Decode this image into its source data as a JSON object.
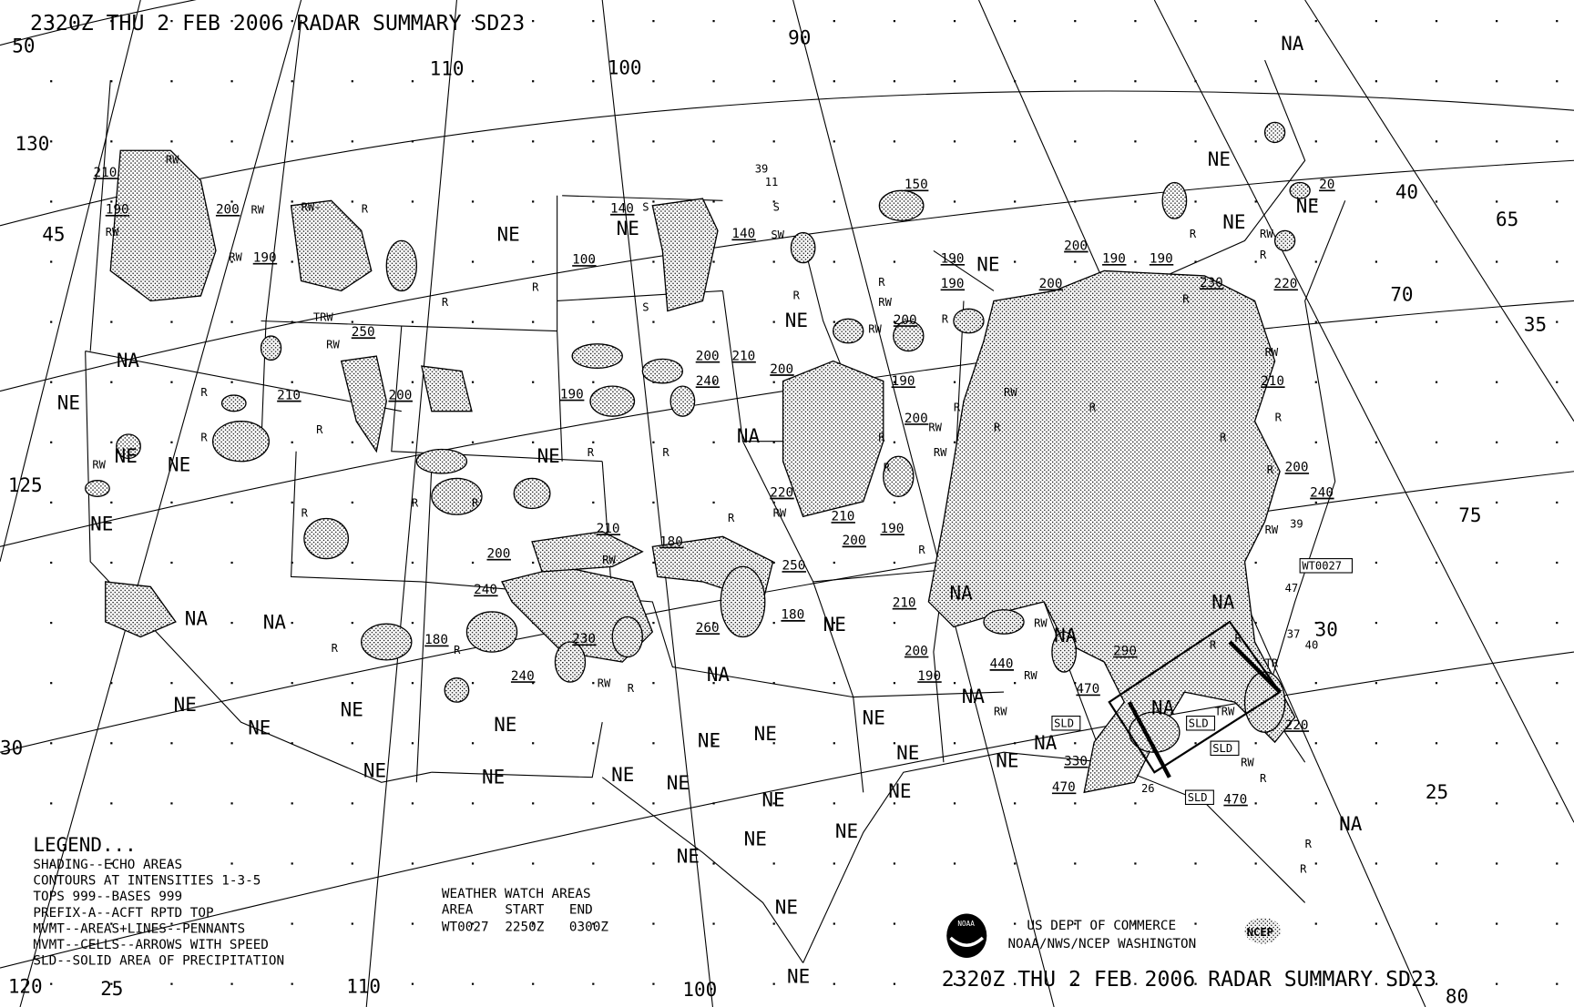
{
  "title_top": "2320Z THU  2 FEB 2006 RADAR SUMMARY SD23",
  "title_bottom": "2320Z THU  2 FEB 2006 RADAR SUMMARY SD23",
  "legend": {
    "heading": "LEGEND...",
    "lines": [
      "SHADING--ECHO AREAS",
      "CONTOURS AT INTENSITIES 1-3-5",
      "TOPS 999--BASES 999",
      "PREFIX-A--ACFT RPTD TOP",
      "MVMT--AREAS+LINES--PENNANTS",
      "MVMT--CELLS--ARROWS WITH SPEED",
      "SLD--SOLID AREA OF PRECIPITATION"
    ]
  },
  "watch": {
    "heading": "WEATHER WATCH AREAS",
    "columns": [
      "AREA",
      "START",
      "END"
    ],
    "rows": [
      [
        "WT0027",
        "2250Z",
        "0300Z"
      ]
    ]
  },
  "credits": {
    "line1": "US DEPT OF COMMERCE",
    "line2": "NOAA/NWS/NCEP WASHINGTON",
    "noaa_logo": "NOAA",
    "ncep_logo": "NCEP"
  },
  "grid_labels": [
    "50",
    "45",
    "130",
    "125",
    "110",
    "100",
    "90",
    "120",
    "25",
    "110",
    "100",
    "40",
    "35",
    "30",
    "25",
    "65",
    "70",
    "75",
    "30",
    "80"
  ],
  "status_labels": [
    "NA",
    "NE",
    "NE",
    "NE",
    "NE",
    "NE",
    "NE",
    "NE",
    "NA",
    "NE",
    "NE",
    "NE",
    "NE",
    "NA",
    "NE",
    "NA",
    "NA",
    "NA",
    "NA",
    "NE",
    "NA",
    "NA",
    "NA",
    "NA",
    "NA",
    "NE",
    "NE",
    "NE",
    "NE",
    "NE",
    "NE",
    "NE",
    "NE",
    "NE",
    "NE",
    "NE",
    "NE",
    "NE",
    "NE",
    "NE",
    "NE",
    "NE",
    "NE",
    "NE",
    "NE",
    "NA"
  ],
  "tops": [
    "210",
    "190",
    "200",
    "190",
    "250",
    "210",
    "200",
    "140",
    "140",
    "100",
    "150",
    "20",
    "200",
    "190",
    "190",
    "190",
    "190",
    "200",
    "230",
    "220",
    "200",
    "200",
    "210",
    "200",
    "190",
    "240",
    "190",
    "200",
    "210",
    "200",
    "240",
    "220",
    "210",
    "200",
    "190",
    "210",
    "180",
    "200",
    "250",
    "240",
    "180",
    "260",
    "230",
    "180",
    "240",
    "210",
    "200",
    "190",
    "440",
    "290",
    "470",
    "330",
    "470",
    "470",
    "220"
  ],
  "speeds": [
    "39",
    "11",
    "26",
    "39",
    "37",
    "40",
    "47"
  ],
  "precip_types": [
    "RW",
    "RW",
    "RW",
    "RW",
    "R",
    "RW-",
    "R",
    "R",
    "TRW",
    "RW",
    "R",
    "R",
    "R",
    "RW",
    "R",
    "R",
    "R",
    "R",
    "S",
    "S",
    "SW",
    "S",
    "R",
    "R",
    "RW",
    "RW",
    "R",
    "R",
    "R",
    "RW",
    "R",
    "R",
    "RW",
    "R",
    "RW",
    "R",
    "R",
    "RW",
    "RW",
    "R",
    "R",
    "R",
    "R",
    "RW",
    "R",
    "RW",
    "R",
    "R",
    "TRW",
    "RW",
    "RW",
    "TR",
    "RW",
    "R",
    "R",
    "R",
    "R",
    "RW",
    "R",
    "RW",
    "RW",
    "R",
    "R",
    "R"
  ],
  "boxed_labels": [
    "WT0027",
    "SLD",
    "SLD",
    "SLD",
    "SLD"
  ],
  "colors": {
    "ink": "#000000",
    "background": "#ffffff"
  }
}
